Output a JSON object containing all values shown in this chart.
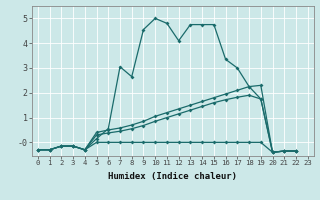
{
  "xlabel": "Humidex (Indice chaleur)",
  "bg_color": "#cce8e8",
  "line_color": "#1a6b6b",
  "xlim": [
    -0.5,
    23.5
  ],
  "ylim": [
    -0.55,
    5.5
  ],
  "xticks": [
    0,
    1,
    2,
    3,
    4,
    5,
    6,
    7,
    8,
    9,
    10,
    11,
    12,
    13,
    14,
    15,
    16,
    17,
    18,
    19,
    20,
    21,
    22,
    23
  ],
  "yticks": [
    0,
    1,
    2,
    3,
    4,
    5
  ],
  "ytick_labels": [
    "-0",
    "1",
    "2",
    "3",
    "4",
    "5"
  ],
  "line1_x": [
    0,
    1,
    2,
    3,
    4,
    5,
    6,
    7,
    8,
    9,
    10,
    11,
    12,
    13,
    14,
    15,
    16,
    17,
    18,
    19,
    20,
    21,
    22
  ],
  "line1_y": [
    -0.3,
    -0.3,
    -0.15,
    -0.15,
    -0.3,
    0.15,
    0.55,
    3.05,
    2.65,
    4.55,
    5.0,
    4.8,
    4.1,
    4.75,
    4.75,
    4.75,
    3.35,
    3.0,
    2.25,
    1.75,
    -0.4,
    -0.35,
    -0.35
  ],
  "line2_x": [
    0,
    1,
    2,
    3,
    4,
    5,
    6,
    7,
    8,
    9,
    10,
    11,
    12,
    13,
    14,
    15,
    16,
    17,
    18,
    19,
    20,
    21,
    22
  ],
  "line2_y": [
    -0.3,
    -0.3,
    -0.15,
    -0.15,
    -0.3,
    0.4,
    0.5,
    0.58,
    0.7,
    0.85,
    1.05,
    1.2,
    1.35,
    1.5,
    1.65,
    1.8,
    1.95,
    2.1,
    2.25,
    2.3,
    -0.4,
    -0.35,
    -0.35
  ],
  "line3_x": [
    0,
    1,
    2,
    3,
    4,
    5,
    6,
    7,
    8,
    9,
    10,
    11,
    12,
    13,
    14,
    15,
    16,
    17,
    18,
    19,
    20,
    21,
    22
  ],
  "line3_y": [
    -0.3,
    -0.3,
    -0.15,
    -0.15,
    -0.3,
    0.3,
    0.38,
    0.45,
    0.55,
    0.68,
    0.85,
    1.0,
    1.15,
    1.3,
    1.45,
    1.6,
    1.72,
    1.82,
    1.9,
    1.75,
    -0.4,
    -0.35,
    -0.35
  ],
  "line4_x": [
    0,
    1,
    2,
    3,
    4,
    5,
    6,
    7,
    8,
    9,
    10,
    11,
    12,
    13,
    14,
    15,
    16,
    17,
    18,
    19,
    20,
    21,
    22
  ],
  "line4_y": [
    -0.3,
    -0.3,
    -0.15,
    -0.15,
    -0.3,
    0.0,
    0.0,
    0.0,
    0.0,
    0.0,
    0.0,
    0.0,
    0.0,
    0.0,
    0.0,
    0.0,
    0.0,
    0.0,
    0.0,
    0.0,
    -0.4,
    -0.35,
    -0.35
  ]
}
